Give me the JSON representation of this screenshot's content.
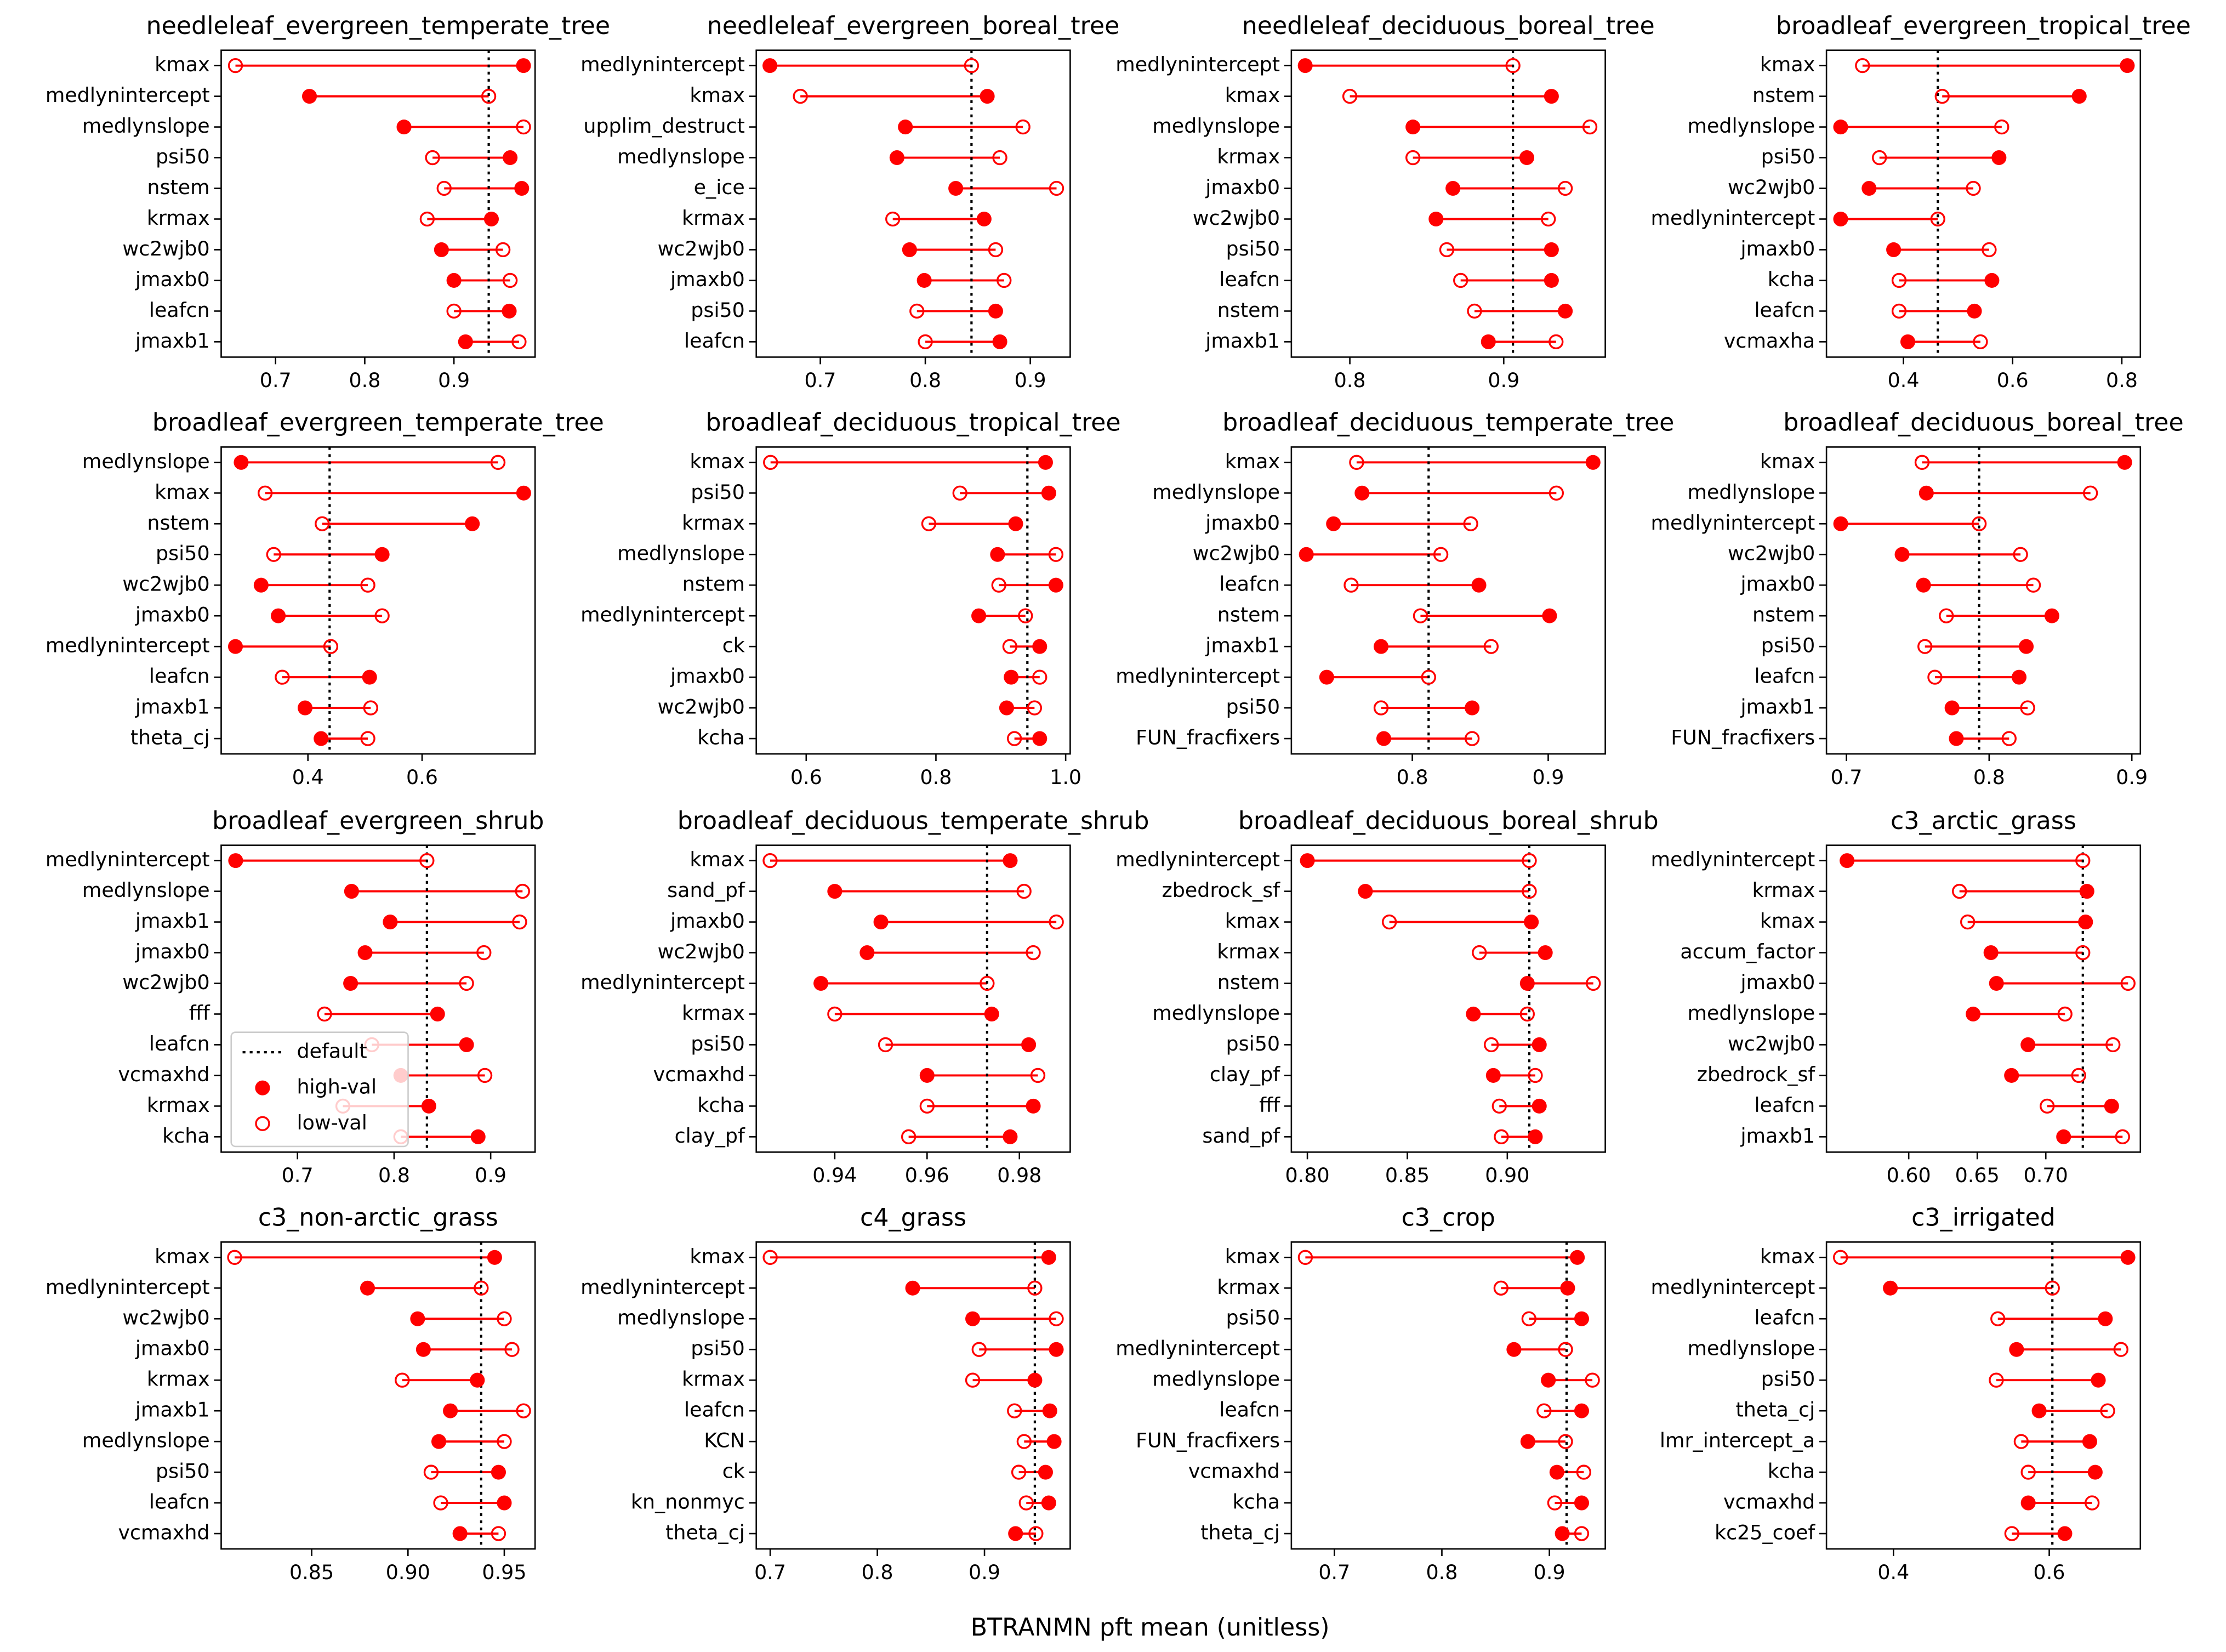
{
  "xlabel": "BTRANMN pft mean (unitless)",
  "chart_data": [
    {
      "type": "dumbbell",
      "title": "needleleaf_evergreen_temperate_tree",
      "categories": [
        "kmax",
        "medlynintercept",
        "medlynslope",
        "psi50",
        "nstem",
        "krmax",
        "wc2wjb0",
        "jmaxb0",
        "leafcn",
        "jmaxb1"
      ],
      "series": [
        {
          "color": "#ff0000",
          "marker": "filled",
          "values": [
            0.978,
            0.738,
            0.844,
            0.963,
            0.976,
            0.942,
            0.886,
            0.9,
            0.962,
            0.913
          ]
        },
        {
          "color": "#ff0000",
          "marker": "open",
          "values": [
            0.655,
            0.939,
            0.978,
            0.876,
            0.889,
            0.87,
            0.955,
            0.963,
            0.9,
            0.973
          ]
        }
      ],
      "default": {
        "value": 0.939
      },
      "xlim": [
        0.639,
        0.991
      ],
      "xticks": [
        0.7,
        0.8,
        0.9
      ]
    },
    {
      "type": "dumbbell",
      "title": "needleleaf_evergreen_boreal_tree",
      "categories": [
        "medlynintercept",
        "kmax",
        "upplim_destruct",
        "medlynslope",
        "e_ice",
        "krmax",
        "wc2wjb0",
        "jmaxb0",
        "psi50",
        "leafcn"
      ],
      "series": [
        {
          "color": "#ff0000",
          "marker": "filled",
          "values": [
            0.652,
            0.859,
            0.781,
            0.773,
            0.829,
            0.856,
            0.785,
            0.799,
            0.867,
            0.871
          ]
        },
        {
          "color": "#ff0000",
          "marker": "open",
          "values": [
            0.844,
            0.681,
            0.893,
            0.871,
            0.925,
            0.769,
            0.867,
            0.875,
            0.792,
            0.8
          ]
        }
      ],
      "default": {
        "value": 0.844
      },
      "xlim": [
        0.639,
        0.938
      ],
      "xticks": [
        0.7,
        0.8,
        0.9
      ]
    },
    {
      "type": "dumbbell",
      "title": "needleleaf_deciduous_boreal_tree",
      "categories": [
        "medlynintercept",
        "kmax",
        "medlynslope",
        "krmax",
        "jmaxb0",
        "wc2wjb0",
        "psi50",
        "leafcn",
        "nstem",
        "jmaxb1"
      ],
      "series": [
        {
          "color": "#ff0000",
          "marker": "filled",
          "values": [
            0.771,
            0.931,
            0.841,
            0.915,
            0.867,
            0.856,
            0.931,
            0.931,
            0.94,
            0.89
          ]
        },
        {
          "color": "#ff0000",
          "marker": "open",
          "values": [
            0.906,
            0.8,
            0.956,
            0.841,
            0.94,
            0.929,
            0.863,
            0.872,
            0.881,
            0.934
          ]
        }
      ],
      "default": {
        "value": 0.906
      },
      "xlim": [
        0.762,
        0.966
      ],
      "xticks": [
        0.8,
        0.9
      ]
    },
    {
      "type": "dumbbell",
      "title": "broadleaf_evergreen_tropical_tree",
      "categories": [
        "kmax",
        "nstem",
        "medlynslope",
        "psi50",
        "wc2wjb0",
        "medlynintercept",
        "jmaxb0",
        "kcha",
        "leafcn",
        "vcmaxha"
      ],
      "series": [
        {
          "color": "#ff0000",
          "marker": "filled",
          "values": [
            0.81,
            0.722,
            0.285,
            0.575,
            0.337,
            0.285,
            0.382,
            0.562,
            0.53,
            0.408
          ]
        },
        {
          "color": "#ff0000",
          "marker": "open",
          "values": [
            0.325,
            0.471,
            0.58,
            0.356,
            0.528,
            0.463,
            0.557,
            0.392,
            0.392,
            0.541
          ]
        }
      ],
      "default": {
        "value": 0.463
      },
      "xlim": [
        0.259,
        0.834
      ],
      "xticks": [
        0.4,
        0.6,
        0.8
      ]
    },
    {
      "type": "dumbbell",
      "title": "broadleaf_evergreen_temperate_tree",
      "categories": [
        "medlynslope",
        "kmax",
        "nstem",
        "psi50",
        "wc2wjb0",
        "jmaxb0",
        "medlynintercept",
        "leafcn",
        "jmaxb1",
        "theta_cj"
      ],
      "series": [
        {
          "color": "#ff0000",
          "marker": "filled",
          "values": [
            0.283,
            0.778,
            0.688,
            0.53,
            0.318,
            0.348,
            0.273,
            0.508,
            0.395,
            0.423
          ]
        },
        {
          "color": "#ff0000",
          "marker": "open",
          "values": [
            0.733,
            0.325,
            0.425,
            0.34,
            0.505,
            0.53,
            0.44,
            0.355,
            0.51,
            0.505
          ]
        }
      ],
      "default": {
        "value": 0.438
      },
      "xlim": [
        0.248,
        0.798
      ],
      "xticks": [
        0.4,
        0.6
      ]
    },
    {
      "type": "dumbbell",
      "title": "broadleaf_deciduous_tropical_tree",
      "categories": [
        "kmax",
        "psi50",
        "krmax",
        "medlynslope",
        "nstem",
        "medlynintercept",
        "ck",
        "jmaxb0",
        "wc2wjb0",
        "kcha"
      ],
      "series": [
        {
          "color": "#ff0000",
          "marker": "filled",
          "values": [
            0.969,
            0.974,
            0.923,
            0.895,
            0.985,
            0.866,
            0.96,
            0.916,
            0.909,
            0.96
          ]
        },
        {
          "color": "#ff0000",
          "marker": "open",
          "values": [
            0.545,
            0.837,
            0.789,
            0.985,
            0.897,
            0.938,
            0.914,
            0.96,
            0.952,
            0.921
          ]
        }
      ],
      "default": {
        "value": 0.941
      },
      "xlim": [
        0.523,
        1.007
      ],
      "xticks": [
        0.6,
        0.8,
        {
          "value": 1,
          "label": "1.0"
        }
      ]
    },
    {
      "type": "dumbbell",
      "title": "broadleaf_deciduous_temperate_tree",
      "categories": [
        "kmax",
        "medlynslope",
        "jmaxb0",
        "wc2wjb0",
        "leafcn",
        "nstem",
        "jmaxb1",
        "medlynintercept",
        "psi50",
        "FUN_fracfixers"
      ],
      "series": [
        {
          "color": "#ff0000",
          "marker": "filled",
          "values": [
            0.933,
            0.763,
            0.742,
            0.722,
            0.849,
            0.901,
            0.777,
            0.737,
            0.844,
            0.779
          ]
        },
        {
          "color": "#ff0000",
          "marker": "open",
          "values": [
            0.759,
            0.906,
            0.843,
            0.821,
            0.755,
            0.806,
            0.858,
            0.812,
            0.777,
            0.844
          ]
        }
      ],
      "default": {
        "value": 0.812
      },
      "xlim": [
        0.711,
        0.942
      ],
      "xticks": [
        0.8,
        0.9
      ]
    },
    {
      "type": "dumbbell",
      "title": "broadleaf_deciduous_boreal_tree",
      "categories": [
        "kmax",
        "medlynslope",
        "medlynintercept",
        "wc2wjb0",
        "jmaxb0",
        "nstem",
        "psi50",
        "leafcn",
        "jmaxb1",
        "FUN_fracfixers"
      ],
      "series": [
        {
          "color": "#ff0000",
          "marker": "filled",
          "values": [
            0.895,
            0.756,
            0.696,
            0.739,
            0.754,
            0.844,
            0.826,
            0.821,
            0.774,
            0.777
          ]
        },
        {
          "color": "#ff0000",
          "marker": "open",
          "values": [
            0.753,
            0.871,
            0.793,
            0.822,
            0.831,
            0.77,
            0.755,
            0.762,
            0.827,
            0.814
          ]
        }
      ],
      "default": {
        "value": 0.793
      },
      "xlim": [
        0.686,
        0.906
      ],
      "xticks": [
        0.7,
        0.8,
        0.9
      ]
    },
    {
      "type": "dumbbell",
      "title": "broadleaf_evergreen_shrub",
      "categories": [
        "medlynintercept",
        "medlynslope",
        "jmaxb1",
        "jmaxb0",
        "wc2wjb0",
        "fff",
        "leafcn",
        "vcmaxhd",
        "krmax",
        "kcha"
      ],
      "series": [
        {
          "name": "high-val",
          "color": "#ff0000",
          "marker": "filled",
          "values": [
            0.636,
            0.756,
            0.796,
            0.77,
            0.755,
            0.845,
            0.875,
            0.807,
            0.836,
            0.887
          ]
        },
        {
          "name": "low-val",
          "color": "#ff0000",
          "marker": "open",
          "values": [
            0.834,
            0.933,
            0.93,
            0.893,
            0.875,
            0.728,
            0.777,
            0.894,
            0.747,
            0.807
          ]
        }
      ],
      "default": {
        "name": "default",
        "value": 0.834
      },
      "legend": "lower left",
      "xlim": [
        0.621,
        0.946
      ],
      "xticks": [
        0.7,
        0.8,
        0.9
      ]
    },
    {
      "type": "dumbbell",
      "title": "broadleaf_deciduous_temperate_shrub",
      "categories": [
        "kmax",
        "sand_pf",
        "jmaxb0",
        "wc2wjb0",
        "medlynintercept",
        "krmax",
        "psi50",
        "vcmaxhd",
        "kcha",
        "clay_pf"
      ],
      "series": [
        {
          "color": "#ff0000",
          "marker": "filled",
          "values": [
            0.978,
            0.94,
            0.95,
            0.947,
            0.937,
            0.974,
            0.982,
            0.96,
            0.983,
            0.978
          ]
        },
        {
          "color": "#ff0000",
          "marker": "open",
          "values": [
            0.926,
            0.981,
            0.988,
            0.983,
            0.973,
            0.94,
            0.951,
            0.984,
            0.96,
            0.956
          ]
        }
      ],
      "default": {
        "value": 0.973
      },
      "xlim": [
        0.923,
        0.991
      ],
      "xticks": [
        0.94,
        0.96,
        0.98
      ]
    },
    {
      "type": "dumbbell",
      "title": "broadleaf_deciduous_boreal_shrub",
      "categories": [
        "medlynintercept",
        "zbedrock_sf",
        "kmax",
        "krmax",
        "nstem",
        "medlynslope",
        "psi50",
        "clay_pf",
        "fff",
        "sand_pf"
      ],
      "series": [
        {
          "color": "#ff0000",
          "marker": "filled",
          "values": [
            0.8,
            0.829,
            0.912,
            0.919,
            0.91,
            0.883,
            0.916,
            0.893,
            0.916,
            0.914
          ]
        },
        {
          "color": "#ff0000",
          "marker": "open",
          "values": [
            0.911,
            0.911,
            0.841,
            0.886,
            0.943,
            0.91,
            0.892,
            0.914,
            0.896,
            0.897
          ]
        }
      ],
      "default": {
        "value": 0.911
      },
      "xlim": [
        0.792,
        0.949
      ],
      "xticks": [
        {
          "value": 0.8,
          "label": "0.80"
        },
        0.85,
        {
          "value": 0.9,
          "label": "0.90"
        }
      ]
    },
    {
      "type": "dumbbell",
      "title": "c3_arctic_grass",
      "categories": [
        "medlynintercept",
        "krmax",
        "kmax",
        "accum_factor",
        "jmaxb0",
        "medlynslope",
        "wc2wjb0",
        "zbedrock_sf",
        "leafcn",
        "jmaxb1"
      ],
      "series": [
        {
          "color": "#ff0000",
          "marker": "filled",
          "values": [
            0.555,
            0.73,
            0.729,
            0.66,
            0.664,
            0.647,
            0.687,
            0.675,
            0.748,
            0.713
          ]
        },
        {
          "color": "#ff0000",
          "marker": "open",
          "values": [
            0.727,
            0.637,
            0.643,
            0.727,
            0.76,
            0.714,
            0.749,
            0.724,
            0.701,
            0.756
          ]
        }
      ],
      "default": {
        "value": 0.727
      },
      "xlim": [
        0.54,
        0.769
      ],
      "xticks": [
        {
          "value": 0.6,
          "label": "0.60"
        },
        0.65,
        {
          "value": 0.7,
          "label": "0.70"
        }
      ]
    },
    {
      "type": "dumbbell",
      "title": "c3_non-arctic_grass",
      "categories": [
        "kmax",
        "medlynintercept",
        "wc2wjb0",
        "jmaxb0",
        "krmax",
        "jmaxb1",
        "medlynslope",
        "psi50",
        "leafcn",
        "vcmaxhd"
      ],
      "series": [
        {
          "color": "#ff0000",
          "marker": "filled",
          "values": [
            0.945,
            0.879,
            0.905,
            0.908,
            0.936,
            0.922,
            0.916,
            0.947,
            0.95,
            0.927
          ]
        },
        {
          "color": "#ff0000",
          "marker": "open",
          "values": [
            0.81,
            0.938,
            0.95,
            0.954,
            0.897,
            0.96,
            0.95,
            0.912,
            0.917,
            0.947
          ]
        }
      ],
      "default": {
        "value": 0.938
      },
      "xlim": [
        0.803,
        0.966
      ],
      "xticks": [
        0.85,
        {
          "value": 0.9,
          "label": "0.90"
        },
        0.95
      ]
    },
    {
      "type": "dumbbell",
      "title": "c4_grass",
      "categories": [
        "kmax",
        "medlynintercept",
        "medlynslope",
        "psi50",
        "krmax",
        "leafcn",
        "KCN",
        "ck",
        "kn_nonmyc",
        "theta_cj"
      ],
      "series": [
        {
          "color": "#ff0000",
          "marker": "filled",
          "values": [
            0.96,
            0.833,
            0.889,
            0.967,
            0.947,
            0.961,
            0.965,
            0.957,
            0.96,
            0.929
          ]
        },
        {
          "color": "#ff0000",
          "marker": "open",
          "values": [
            0.7,
            0.947,
            0.967,
            0.895,
            0.889,
            0.928,
            0.937,
            0.932,
            0.939,
            0.948
          ]
        }
      ],
      "default": {
        "value": 0.947
      },
      "xlim": [
        0.687,
        0.98
      ],
      "xticks": [
        0.7,
        0.8,
        0.9
      ]
    },
    {
      "type": "dumbbell",
      "title": "c3_crop",
      "categories": [
        "kmax",
        "krmax",
        "psi50",
        "medlynintercept",
        "medlynslope",
        "leafcn",
        "FUN_fracfixers",
        "vcmaxhd",
        "kcha",
        "theta_cj"
      ],
      "series": [
        {
          "color": "#ff0000",
          "marker": "filled",
          "values": [
            0.926,
            0.917,
            0.93,
            0.867,
            0.899,
            0.93,
            0.88,
            0.907,
            0.93,
            0.912
          ]
        },
        {
          "color": "#ff0000",
          "marker": "open",
          "values": [
            0.673,
            0.855,
            0.881,
            0.915,
            0.94,
            0.895,
            0.915,
            0.932,
            0.905,
            0.93
          ]
        }
      ],
      "default": {
        "value": 0.916
      },
      "xlim": [
        0.66,
        0.952
      ],
      "xticks": [
        0.7,
        0.8,
        0.9
      ]
    },
    {
      "type": "dumbbell",
      "title": "c3_irrigated",
      "categories": [
        "kmax",
        "medlynintercept",
        "leafcn",
        "medlynslope",
        "psi50",
        "theta_cj",
        "lmr_intercept_a",
        "kcha",
        "vcmaxhd",
        "kc25_coef"
      ],
      "series": [
        {
          "color": "#ff0000",
          "marker": "filled",
          "values": [
            0.701,
            0.396,
            0.672,
            0.558,
            0.663,
            0.587,
            0.652,
            0.659,
            0.573,
            0.62
          ]
        },
        {
          "color": "#ff0000",
          "marker": "open",
          "values": [
            0.332,
            0.604,
            0.534,
            0.692,
            0.532,
            0.675,
            0.564,
            0.573,
            0.655,
            0.552
          ]
        }
      ],
      "default": {
        "value": 0.604
      },
      "xlim": [
        0.314,
        0.717
      ],
      "xticks": [
        0.4,
        0.6
      ]
    }
  ]
}
